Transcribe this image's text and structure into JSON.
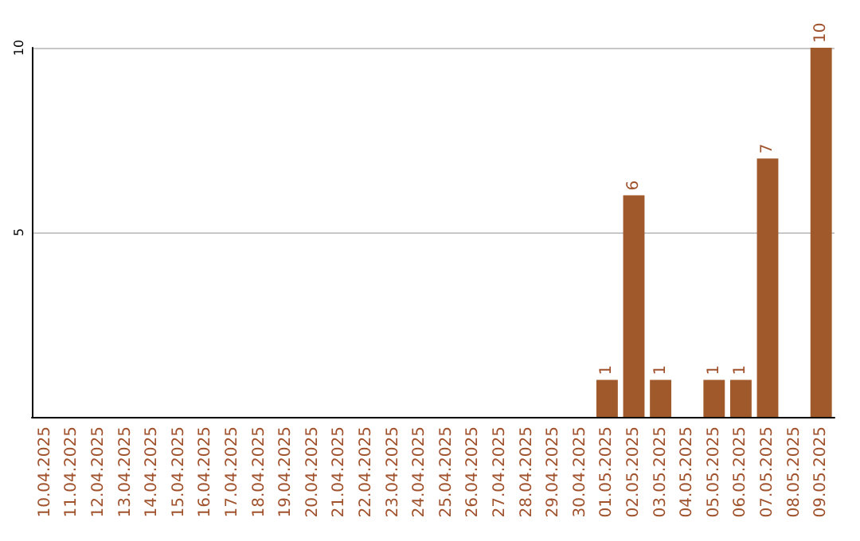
{
  "chart_data": {
    "type": "bar",
    "categories": [
      "10.04.2025",
      "11.04.2025",
      "12.04.2025",
      "13.04.2025",
      "14.04.2025",
      "15.04.2025",
      "16.04.2025",
      "17.04.2025",
      "18.04.2025",
      "19.04.2025",
      "20.04.2025",
      "21.04.2025",
      "22.04.2025",
      "23.04.2025",
      "24.04.2025",
      "25.04.2025",
      "26.04.2025",
      "27.04.2025",
      "28.04.2025",
      "29.04.2025",
      "30.04.2025",
      "01.05.2025",
      "02.05.2025",
      "03.05.2025",
      "04.05.2025",
      "05.05.2025",
      "06.05.2025",
      "07.05.2025",
      "08.05.2025",
      "09.05.2025"
    ],
    "values": [
      0,
      0,
      0,
      0,
      0,
      0,
      0,
      0,
      0,
      0,
      0,
      0,
      0,
      0,
      0,
      0,
      0,
      0,
      0,
      0,
      0,
      1,
      6,
      1,
      0,
      1,
      1,
      7,
      0,
      10
    ],
    "value_labels": [
      null,
      null,
      null,
      null,
      null,
      null,
      null,
      null,
      null,
      null,
      null,
      null,
      null,
      null,
      null,
      null,
      null,
      null,
      null,
      null,
      null,
      "1",
      "6",
      "1",
      null,
      "1",
      "1",
      "7",
      null,
      "10"
    ],
    "color": "#a0592a",
    "ylim": [
      0,
      10
    ],
    "yticks": [
      5,
      10
    ],
    "grid": "y"
  }
}
